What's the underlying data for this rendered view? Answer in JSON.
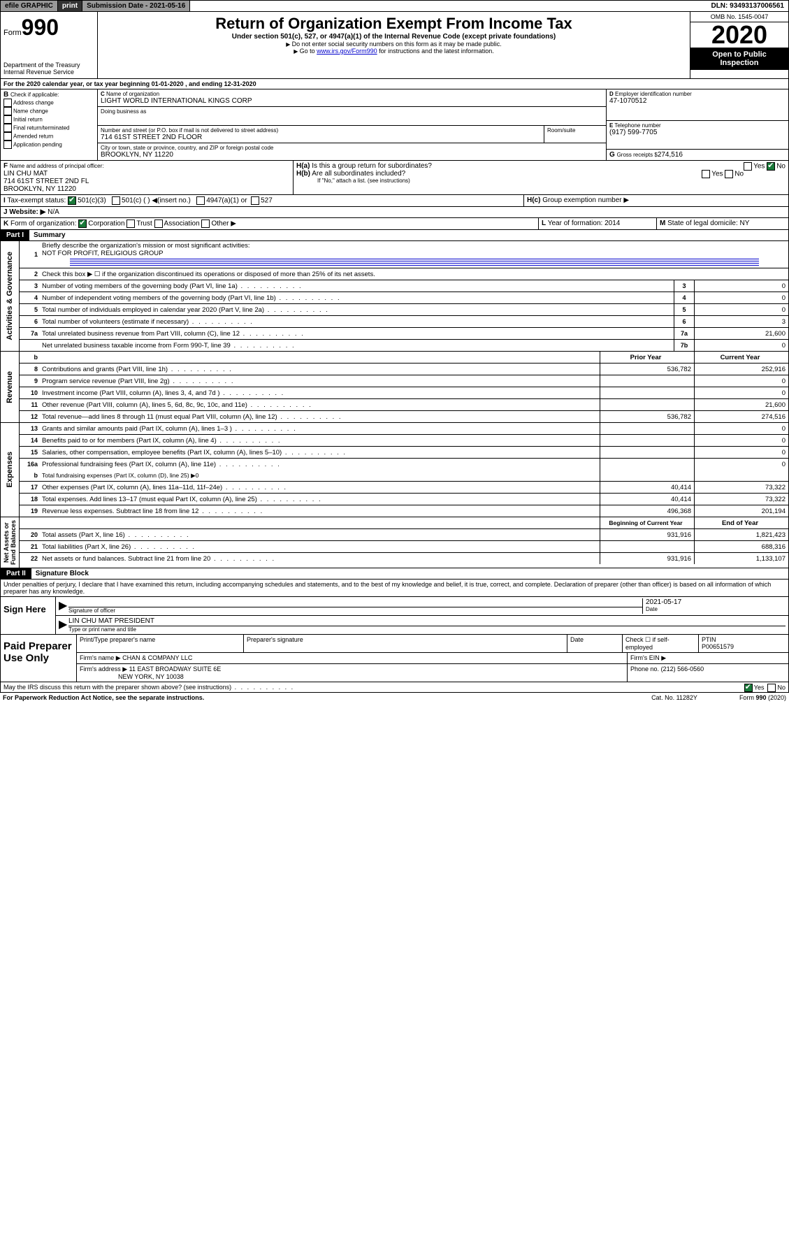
{
  "topbar": {
    "efile": "efile GRAPHIC",
    "print": "print",
    "sub_label": "Submission Date - 2021-05-16",
    "dln": "DLN: 93493137006561"
  },
  "header": {
    "form_word": "Form",
    "form_num": "990",
    "dept": "Department of the Treasury\nInternal Revenue Service",
    "title": "Return of Organization Exempt From Income Tax",
    "sub1": "Under section 501(c), 527, or 4947(a)(1) of the Internal Revenue Code (except private foundations)",
    "sub2": "Do not enter social security numbers on this form as it may be made public.",
    "sub3_pre": "Go to ",
    "sub3_link": "www.irs.gov/Form990",
    "sub3_post": " for instructions and the latest information.",
    "omb": "OMB No. 1545-0047",
    "year": "2020",
    "open": "Open to Public Inspection"
  },
  "lineA": "For the 2020 calendar year, or tax year beginning 01-01-2020     , and ending 12-31-2020",
  "B": {
    "hdr": "Check if applicable:",
    "opts": [
      "Address change",
      "Name change",
      "Initial return",
      "Final return/terminated",
      "Amended return",
      "Application pending"
    ]
  },
  "C": {
    "name_lbl": "Name of organization",
    "name": "LIGHT WORLD INTERNATIONAL KINGS CORP",
    "dba_lbl": "Doing business as",
    "addr_lbl": "Number and street (or P.O. box if mail is not delivered to street address)",
    "room_lbl": "Room/suite",
    "addr": "714 61ST STREET 2ND FLOOR",
    "city_lbl": "City or town, state or province, country, and ZIP or foreign postal code",
    "city": "BROOKLYN, NY  11220"
  },
  "D": {
    "lbl": "Employer identification number",
    "val": "47-1070512"
  },
  "E": {
    "lbl": "Telephone number",
    "val": "(917) 599-7705"
  },
  "G": {
    "lbl": "Gross receipts $",
    "val": "274,516"
  },
  "F": {
    "lbl": "Name and address of principal officer:",
    "name": "LIN CHU MAT",
    "addr1": "714 61ST STREET 2ND FL",
    "addr2": "BROOKLYN, NY  11220"
  },
  "H": {
    "a": "Is this a group return for subordinates?",
    "b": "Are all subordinates included?",
    "note": "If \"No,\" attach a list. (see instructions)",
    "c": "Group exemption number ▶",
    "yes": "Yes",
    "no": "No"
  },
  "I": {
    "lbl": "Tax-exempt status:",
    "o1": "501(c)(3)",
    "o2": "501(c) (  ) ◀(insert no.)",
    "o3": "4947(a)(1) or",
    "o4": "527"
  },
  "J": {
    "lbl": "Website: ▶",
    "val": "N/A"
  },
  "K": {
    "lbl": "Form of organization:",
    "o1": "Corporation",
    "o2": "Trust",
    "o3": "Association",
    "o4": "Other ▶"
  },
  "L": {
    "lbl": "Year of formation:",
    "val": "2014"
  },
  "M": {
    "lbl": "State of legal domicile:",
    "val": "NY"
  },
  "part1": {
    "hdr": "Part I",
    "title": "Summary"
  },
  "summary": {
    "l1": "Briefly describe the organization's mission or most significant activities:",
    "l1v": "NOT FOR PROFIT, RELIGIOUS GROUP",
    "l2": "Check this box ▶ ☐  if the organization discontinued its operations or disposed of more than 25% of its net assets.",
    "rows": [
      {
        "n": "3",
        "t": "Number of voting members of the governing body (Part VI, line 1a)",
        "b": "3",
        "v": "0"
      },
      {
        "n": "4",
        "t": "Number of independent voting members of the governing body (Part VI, line 1b)",
        "b": "4",
        "v": "0"
      },
      {
        "n": "5",
        "t": "Total number of individuals employed in calendar year 2020 (Part V, line 2a)",
        "b": "5",
        "v": "0"
      },
      {
        "n": "6",
        "t": "Total number of volunteers (estimate if necessary)",
        "b": "6",
        "v": "3"
      },
      {
        "n": "7a",
        "t": "Total unrelated business revenue from Part VIII, column (C), line 12",
        "b": "7a",
        "v": "21,600"
      },
      {
        "n": "",
        "t": "Net unrelated business taxable income from Form 990-T, line 39",
        "b": "7b",
        "v": "0"
      }
    ]
  },
  "revenue": {
    "hdr_prior": "Prior Year",
    "hdr_curr": "Current Year",
    "rows": [
      {
        "n": "8",
        "t": "Contributions and grants (Part VIII, line 1h)",
        "p": "536,782",
        "c": "252,916"
      },
      {
        "n": "9",
        "t": "Program service revenue (Part VIII, line 2g)",
        "p": "",
        "c": "0"
      },
      {
        "n": "10",
        "t": "Investment income (Part VIII, column (A), lines 3, 4, and 7d )",
        "p": "",
        "c": "0"
      },
      {
        "n": "11",
        "t": "Other revenue (Part VIII, column (A), lines 5, 6d, 8c, 9c, 10c, and 11e)",
        "p": "",
        "c": "21,600"
      },
      {
        "n": "12",
        "t": "Total revenue—add lines 8 through 11 (must equal Part VIII, column (A), line 12)",
        "p": "536,782",
        "c": "274,516"
      }
    ]
  },
  "expenses": {
    "rows": [
      {
        "n": "13",
        "t": "Grants and similar amounts paid (Part IX, column (A), lines 1–3 )",
        "p": "",
        "c": "0"
      },
      {
        "n": "14",
        "t": "Benefits paid to or for members (Part IX, column (A), line 4)",
        "p": "",
        "c": "0"
      },
      {
        "n": "15",
        "t": "Salaries, other compensation, employee benefits (Part IX, column (A), lines 5–10)",
        "p": "",
        "c": "0"
      },
      {
        "n": "16a",
        "t": "Professional fundraising fees (Part IX, column (A), line 11e)",
        "p": "",
        "c": "0"
      }
    ],
    "l16b": "Total fundraising expenses (Part IX, column (D), line 25) ▶0",
    "rows2": [
      {
        "n": "17",
        "t": "Other expenses (Part IX, column (A), lines 11a–11d, 11f–24e)",
        "p": "40,414",
        "c": "73,322"
      },
      {
        "n": "18",
        "t": "Total expenses. Add lines 13–17 (must equal Part IX, column (A), line 25)",
        "p": "40,414",
        "c": "73,322"
      },
      {
        "n": "19",
        "t": "Revenue less expenses. Subtract line 18 from line 12",
        "p": "496,368",
        "c": "201,194"
      }
    ]
  },
  "netassets": {
    "hdr_beg": "Beginning of Current Year",
    "hdr_end": "End of Year",
    "rows": [
      {
        "n": "20",
        "t": "Total assets (Part X, line 16)",
        "p": "931,916",
        "c": "1,821,423"
      },
      {
        "n": "21",
        "t": "Total liabilities (Part X, line 26)",
        "p": "",
        "c": "688,316"
      },
      {
        "n": "22",
        "t": "Net assets or fund balances. Subtract line 21 from line 20",
        "p": "931,916",
        "c": "1,133,107"
      }
    ]
  },
  "part2": {
    "hdr": "Part II",
    "title": "Signature Block"
  },
  "perjury": "Under penalties of perjury, I declare that I have examined this return, including accompanying schedules and statements, and to the best of my knowledge and belief, it is true, correct, and complete. Declaration of preparer (other than officer) is based on all information of which preparer has any knowledge.",
  "sign": {
    "here": "Sign Here",
    "sig_lbl": "Signature of officer",
    "date_lbl": "Date",
    "date": "2021-05-17",
    "name": "LIN CHU MAT PRESIDENT",
    "name_lbl": "Type or print name and title"
  },
  "paid": {
    "title": "Paid Preparer Use Only",
    "h1": "Print/Type preparer's name",
    "h2": "Preparer's signature",
    "h3": "Date",
    "h4": "Check ☐ if self-employed",
    "h5": "PTIN",
    "ptin": "P00651579",
    "firm_lbl": "Firm's name   ▶",
    "firm": "CHAN & COMPANY LLC",
    "ein_lbl": "Firm's EIN ▶",
    "addr_lbl": "Firm's address ▶",
    "addr1": "11 EAST BROADWAY SUITE 6E",
    "addr2": "NEW YORK, NY  10038",
    "phone_lbl": "Phone no.",
    "phone": "(212) 566-0560"
  },
  "discuss": "May the IRS discuss this return with the preparer shown above? (see instructions)",
  "footer": {
    "l": "For Paperwork Reduction Act Notice, see the separate instructions.",
    "m": "Cat. No. 11282Y",
    "r": "Form 990 (2020)"
  }
}
